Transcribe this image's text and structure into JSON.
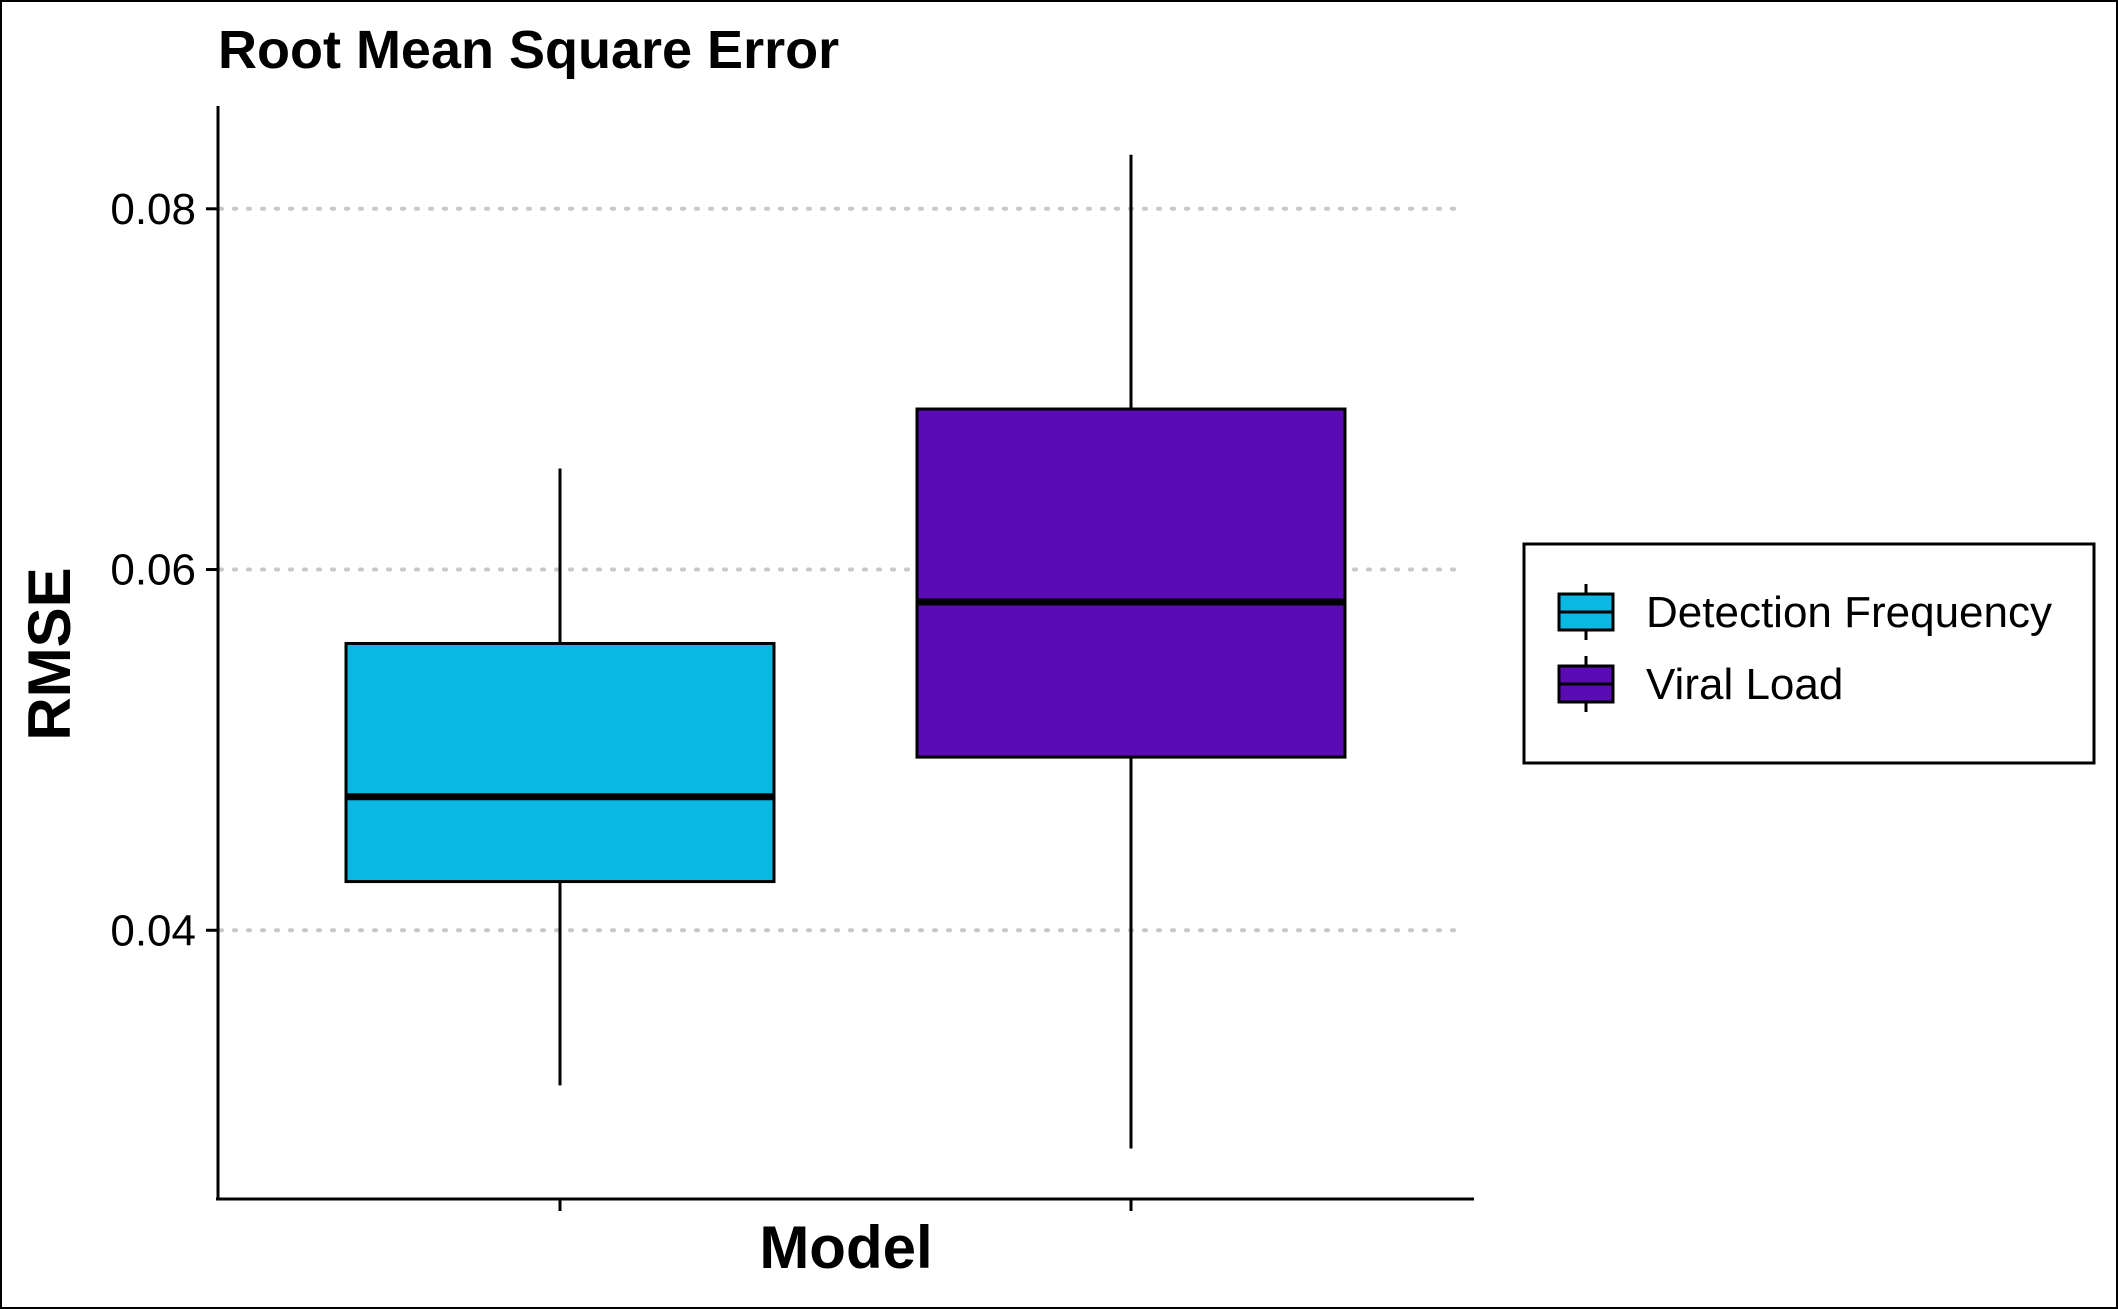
{
  "chart_data": {
    "type": "boxplot",
    "title": "Root Mean Square Error",
    "xlabel": "Model",
    "ylabel": "RMSE",
    "ylim": [
      0.0251,
      0.0857
    ],
    "yticks": [
      0.04,
      0.06,
      0.08
    ],
    "ytick_labels": [
      "0.04",
      "0.06",
      "0.08"
    ],
    "grid": "horizontal dotted major gridlines",
    "legend_position": "right",
    "series": [
      {
        "name": "Detection Frequency",
        "color": "#0AB8E3",
        "whisker_low": 0.0314,
        "q1": 0.0427,
        "median": 0.0474,
        "q3": 0.0559,
        "whisker_high": 0.0656
      },
      {
        "name": "Viral Load",
        "color": "#5A0BB4",
        "whisker_low": 0.0279,
        "q1": 0.0496,
        "median": 0.0582,
        "q3": 0.0689,
        "whisker_high": 0.083
      }
    ]
  }
}
